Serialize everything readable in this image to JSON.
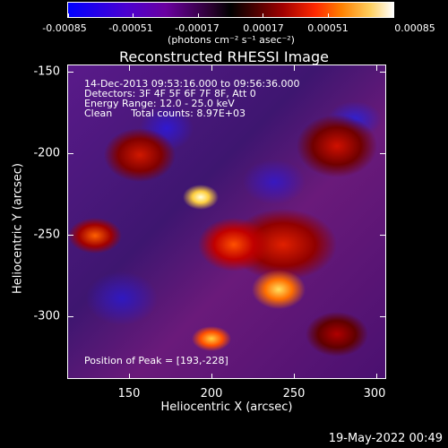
{
  "colorbar": {
    "ticks": [
      "-0.00085",
      "-0.00051",
      "-0.00017",
      "0.00017",
      "0.00051",
      "0.00085"
    ],
    "units": "(photons cm⁻² s⁻¹ asec⁻²)"
  },
  "title": "Reconstructed RHESSI Image",
  "annotations": {
    "line1": "14-Dec-2013 09:53:16.000 to 09:56:36.000",
    "line2": "Detectors: 3F 4F 5F 6F 7F 8F, Att 0",
    "line3": "Energy Range: 12.0 - 25.0 keV",
    "line4": "Clean      Total counts: 8.97E+03",
    "peak": "Position of Peak = [193,-228]"
  },
  "axes": {
    "x_title": "Heliocentric X (arcsec)",
    "y_title": "Heliocentric Y (arcsec)",
    "x_ticks": [
      "150",
      "200",
      "250",
      "300"
    ],
    "y_ticks": [
      "-150",
      "-200",
      "-250",
      "-300"
    ],
    "x_range": [
      110,
      305
    ],
    "y_range": [
      -338,
      -145
    ]
  },
  "footer": {
    "date": "19-May-2022 00:49"
  },
  "colors": {
    "background": "#000000",
    "foreground": "#ffffff"
  }
}
